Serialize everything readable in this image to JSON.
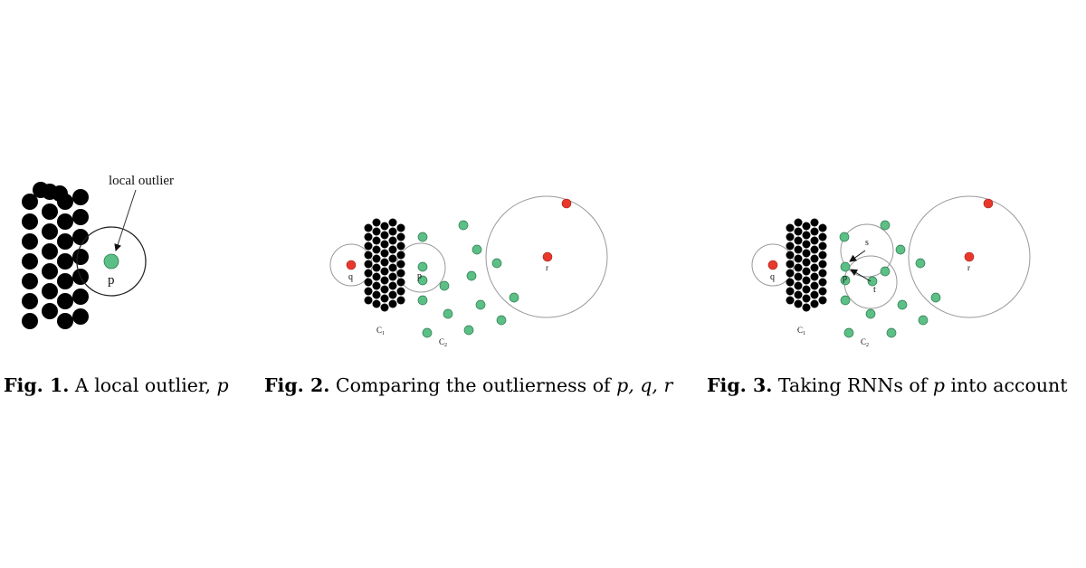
{
  "figure1": {
    "annotation": "local outlier",
    "point_label": "p",
    "caption_label": "Fig. 1.",
    "caption_text": "A local outlier, ",
    "caption_var": "p"
  },
  "figure2": {
    "labels": {
      "q": "q",
      "p": "p",
      "r": "r",
      "c1": "C",
      "c1_sub": "1",
      "c2": "C",
      "c2_sub": "2"
    },
    "caption_label": "Fig. 2.",
    "caption_text": "Comparing the outlierness of ",
    "caption_vars": "p, q, r"
  },
  "figure3": {
    "labels": {
      "q": "q",
      "p": "p",
      "r": "r",
      "s": "s",
      "t": "t",
      "c1": "C",
      "c1_sub": "1",
      "c2": "C",
      "c2_sub": "2"
    },
    "caption_label": "Fig. 3.",
    "caption_text": "Taking RNNs of ",
    "caption_var": "p",
    "caption_tail": " into account"
  },
  "colors": {
    "dense_point": "#000000",
    "normal_point": "#5cbf86",
    "outlier_point": "#e8372b",
    "circle": "#888888"
  }
}
